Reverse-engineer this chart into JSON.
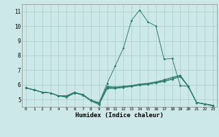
{
  "xlabel": "Humidex (Indice chaleur)",
  "xlim": [
    -0.5,
    23.5
  ],
  "ylim": [
    4.5,
    11.5
  ],
  "yticks": [
    5,
    6,
    7,
    8,
    9,
    10,
    11
  ],
  "xticks": [
    0,
    1,
    2,
    3,
    4,
    5,
    6,
    7,
    8,
    9,
    10,
    11,
    12,
    13,
    14,
    15,
    16,
    17,
    18,
    19,
    20,
    21,
    22,
    23
  ],
  "background_color": "#cce8e8",
  "grid_color": "#aacccc",
  "line_color": "#2e7d6e",
  "series": [
    [
      5.8,
      5.65,
      5.5,
      5.45,
      5.25,
      5.25,
      5.5,
      5.3,
      4.95,
      4.75,
      6.1,
      7.3,
      8.5,
      10.4,
      11.1,
      10.3,
      10.0,
      7.75,
      7.8,
      5.95,
      5.9,
      4.8,
      4.7,
      4.6
    ],
    [
      5.8,
      5.65,
      5.5,
      5.45,
      5.25,
      5.25,
      5.5,
      5.3,
      4.95,
      4.75,
      5.85,
      5.8,
      5.9,
      5.95,
      6.05,
      6.1,
      6.2,
      6.3,
      6.5,
      6.65,
      5.85,
      4.8,
      4.7,
      4.6
    ],
    [
      5.8,
      5.65,
      5.5,
      5.45,
      5.25,
      5.2,
      5.45,
      5.35,
      4.95,
      4.8,
      5.9,
      5.85,
      5.9,
      5.95,
      6.05,
      6.1,
      6.2,
      6.35,
      6.5,
      6.65,
      5.9,
      4.8,
      4.7,
      4.6
    ],
    [
      5.8,
      5.65,
      5.5,
      5.45,
      5.25,
      5.2,
      5.45,
      5.35,
      4.95,
      4.7,
      5.8,
      5.8,
      5.85,
      5.9,
      6.0,
      6.05,
      6.15,
      6.25,
      6.4,
      6.6,
      5.9,
      4.8,
      4.7,
      4.6
    ],
    [
      5.8,
      5.65,
      5.5,
      5.45,
      5.25,
      5.15,
      5.45,
      5.3,
      4.9,
      4.65,
      5.75,
      5.75,
      5.82,
      5.88,
      5.98,
      6.02,
      6.12,
      6.22,
      6.38,
      6.55,
      5.88,
      4.78,
      4.68,
      4.56
    ]
  ]
}
